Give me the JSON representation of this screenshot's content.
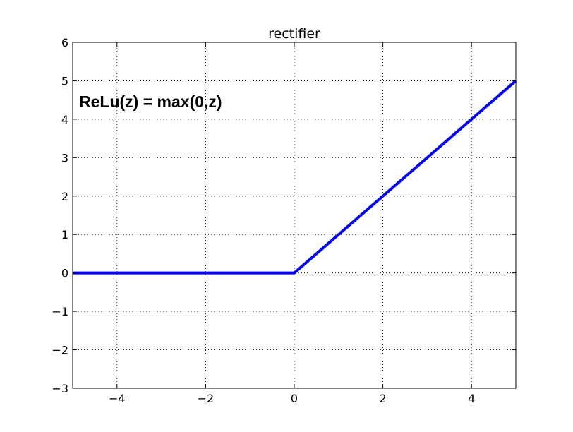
{
  "chart_data": {
    "type": "line",
    "title": "rectifier",
    "xlabel": "",
    "ylabel": "",
    "xlim": [
      -5,
      5
    ],
    "ylim": [
      -3,
      6
    ],
    "xticks": [
      -4,
      -2,
      0,
      2,
      4
    ],
    "yticks": [
      -3,
      -2,
      -1,
      0,
      1,
      2,
      3,
      4,
      5,
      6
    ],
    "xtick_labels": [
      "−4",
      "−2",
      "0",
      "2",
      "4"
    ],
    "ytick_labels": [
      "−3",
      "−2",
      "−1",
      "0",
      "1",
      "2",
      "3",
      "4",
      "5",
      "6"
    ],
    "grid": true,
    "annotation": "ReLu(z) = max(0,z)",
    "series": [
      {
        "color": "#0000ff",
        "x": [
          -5,
          -4,
          -3,
          -2,
          -1,
          0,
          1,
          2,
          3,
          4,
          5
        ],
        "y": [
          0,
          0,
          0,
          0,
          0,
          0,
          1,
          2,
          3,
          4,
          5
        ]
      }
    ]
  }
}
